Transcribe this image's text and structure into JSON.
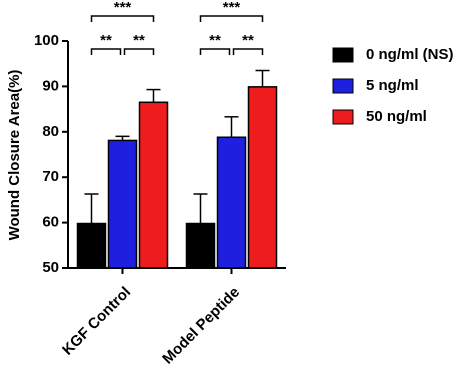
{
  "chart_data": {
    "type": "bar",
    "y_label": "Wound Closure Area(%)",
    "categories": [
      "KGF Control",
      "Model Peptide"
    ],
    "series": [
      {
        "name": "0 ng/ml (NS)",
        "color": "#000000",
        "values": [
          59.8,
          59.8
        ],
        "errors": [
          6.5,
          6.5
        ]
      },
      {
        "name": "5 ng/ml",
        "color": "#1f1fe0",
        "values": [
          78.1,
          78.8
        ],
        "errors": [
          0.9,
          4.5
        ]
      },
      {
        "name": "50 ng/ml",
        "color": "#ee1c1c",
        "values": [
          86.5,
          89.9
        ],
        "errors": [
          2.8,
          3.6
        ]
      }
    ],
    "significance": [
      [
        "**",
        "**",
        "***"
      ],
      [
        "**",
        "**",
        "***"
      ]
    ],
    "ylim": [
      50,
      100
    ],
    "yticks": [
      50,
      60,
      70,
      80,
      90,
      100
    ]
  }
}
